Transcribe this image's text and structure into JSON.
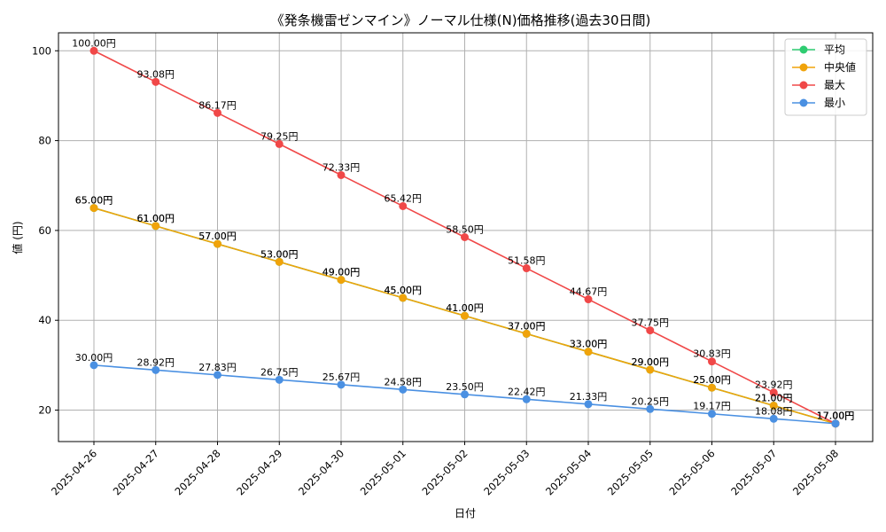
{
  "chart_data": {
    "type": "line",
    "title": "《発条機雷ゼンマイン》ノーマル仕様(N)価格推移(過去30日間)",
    "xlabel": "日付",
    "ylabel": "値 (円)",
    "ylim": [
      13,
      104
    ],
    "yticks": [
      20,
      40,
      60,
      80,
      100
    ],
    "grid": true,
    "legend_position": "top-right",
    "categories": [
      "2025-04-26",
      "2025-04-27",
      "2025-04-28",
      "2025-04-29",
      "2025-04-30",
      "2025-05-01",
      "2025-05-02",
      "2025-05-03",
      "2025-05-04",
      "2025-05-05",
      "2025-05-06",
      "2025-05-07",
      "2025-05-08"
    ],
    "series": [
      {
        "name": "平均",
        "color": "#2ecc71",
        "values": [
          65.0,
          61.0,
          57.0,
          53.0,
          49.0,
          45.0,
          41.0,
          37.0,
          33.0,
          29.0,
          25.0,
          21.0,
          17.0
        ],
        "labels": [
          "65.00円",
          "61.00円",
          "57.00円",
          "53.00円",
          "49.00円",
          "45.00円",
          "41.00円",
          "37.00円",
          "33.00円",
          "29.00円",
          "25.00円",
          "21.00円",
          "17.00円"
        ]
      },
      {
        "name": "中央値",
        "color": "#f0a30a",
        "values": [
          65.0,
          61.0,
          57.0,
          53.0,
          49.0,
          45.0,
          41.0,
          37.0,
          33.0,
          29.0,
          25.0,
          21.0,
          17.0
        ],
        "labels": [
          "65.00円",
          "61.00円",
          "57.00円",
          "53.00円",
          "49.00円",
          "45.00円",
          "41.00円",
          "37.00円",
          "33.00円",
          "29.00円",
          "25.00円",
          "21.00円",
          "17.00円"
        ]
      },
      {
        "name": "最大",
        "color": "#f04848",
        "values": [
          100.0,
          93.08,
          86.17,
          79.25,
          72.33,
          65.42,
          58.5,
          51.58,
          44.67,
          37.75,
          30.83,
          23.92,
          17.0
        ],
        "labels": [
          "100.00円",
          "93.08円",
          "86.17円",
          "79.25円",
          "72.33円",
          "65.42円",
          "58.50円",
          "51.58円",
          "44.67円",
          "37.75円",
          "30.83円",
          "23.92円",
          "17.00円"
        ]
      },
      {
        "name": "最小",
        "color": "#4a90e2",
        "values": [
          30.0,
          28.92,
          27.83,
          26.75,
          25.67,
          24.58,
          23.5,
          22.42,
          21.33,
          20.25,
          19.17,
          18.08,
          17.0
        ],
        "labels": [
          "30.00円",
          "28.92円",
          "27.83円",
          "26.75円",
          "25.67円",
          "24.58円",
          "23.50円",
          "22.42円",
          "21.33円",
          "20.25円",
          "19.17円",
          "18.08円",
          "17.00円"
        ]
      }
    ]
  }
}
